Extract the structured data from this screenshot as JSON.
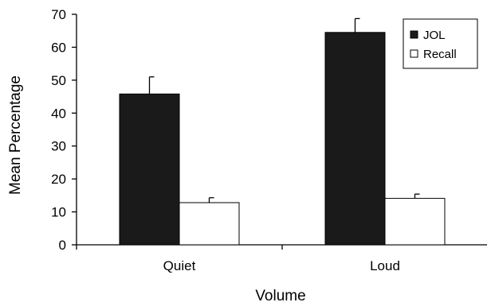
{
  "chart_data": {
    "type": "bar",
    "title": "",
    "xlabel": "Volume",
    "ylabel": "Mean Percentage",
    "categories": [
      "Quiet",
      "Loud"
    ],
    "series": [
      {
        "name": "JOL",
        "values": [
          45.8,
          64.5
        ],
        "errors": [
          5.2,
          4.2
        ],
        "color": "#1a1a1a"
      },
      {
        "name": "Recall",
        "values": [
          12.8,
          14.1
        ],
        "errors": [
          1.5,
          1.3
        ],
        "color": "#ffffff"
      }
    ],
    "ylim": [
      0,
      70
    ],
    "yticks": [
      0,
      10,
      20,
      30,
      40,
      50,
      60,
      70
    ],
    "grid": false,
    "legend_position": "top-right",
    "error_bars": "upper"
  }
}
